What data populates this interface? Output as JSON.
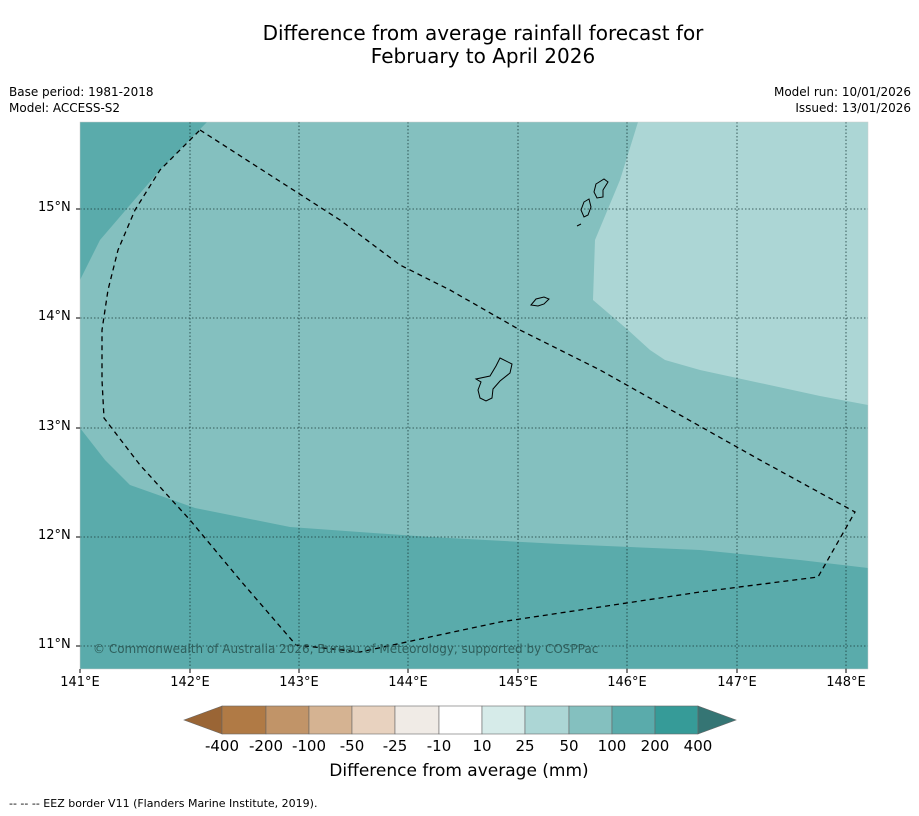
{
  "title_line1": "Difference from average rainfall forecast for",
  "title_line2": "February to April 2026",
  "base_period": "Base period: 1981-2018",
  "model": "Model: ACCESS-S2",
  "model_run": "Model run: 10/01/2026",
  "issued": "Issued: 13/01/2026",
  "copyright": "© Commonwealth of Australia 2026, Bureau of Meteorology, supported by COSPPac",
  "lat_labels": [
    "15°N",
    "14°N",
    "13°N",
    "12°N",
    "11°N"
  ],
  "lon_labels": [
    "141°E",
    "142°E",
    "143°E",
    "144°E",
    "145°E",
    "146°E",
    "147°E",
    "148°E"
  ],
  "colorbar": {
    "title": "Difference from average (mm)",
    "tick_labels": [
      "-400",
      "-200",
      "-100",
      "-50",
      "-25",
      "-10",
      "10",
      "25",
      "50",
      "100",
      "200",
      "400"
    ],
    "colors": [
      "#9a6535",
      "#b07a45",
      "#c19468",
      "#d5b392",
      "#e8d2bf",
      "#f0ebe6",
      "#ffffff",
      "#d6ebe9",
      "#acd6d5",
      "#84c0bf",
      "#5aabab",
      "#369b98",
      "#357574"
    ]
  },
  "zone_colors": {
    "50_100": "#84c0bf",
    "100_200": "#5aabab",
    "25_50": "#acd6d5"
  },
  "footnote": "--  --  -- EEZ border V11 (Flanders Marine Institute, 2019)."
}
